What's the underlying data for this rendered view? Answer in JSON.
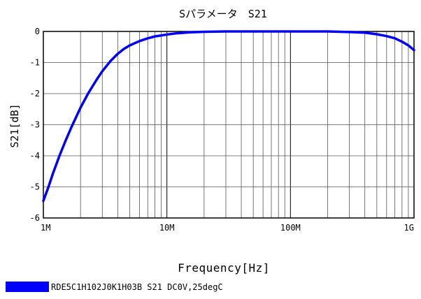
{
  "chart_data": {
    "type": "line",
    "title": "Sパラメータ　S21",
    "xlabel": "Frequency[Hz]",
    "ylabel": "S21[dB]",
    "x_scale": "log",
    "xlim": [
      1000000,
      1000000000
    ],
    "ylim": [
      -6,
      0
    ],
    "x_tick_labels": [
      "1M",
      "10M",
      "100M",
      "1G"
    ],
    "y_tick_labels": [
      "0",
      "-1",
      "-2",
      "-3",
      "-4",
      "-5",
      "-6"
    ],
    "y_tick_values": [
      0,
      -1,
      -2,
      -3,
      -4,
      -5,
      -6
    ],
    "grid": true,
    "legend_position": "bottom-left",
    "series": [
      {
        "name": "RDE5C1H102J0K1H03B S21 DC0V,25degC",
        "color": "#0000ff",
        "x": [
          1000000,
          1100000,
          1200000,
          1350000,
          1500000,
          1700000,
          2000000,
          2300000,
          2700000,
          3000000,
          3500000,
          4000000,
          4500000,
          5000000,
          6000000,
          7000000,
          8000000,
          10000000,
          12000000,
          15000000,
          20000000,
          30000000,
          50000000,
          100000000,
          200000000,
          300000000,
          400000000,
          500000000,
          600000000,
          700000000,
          800000000,
          900000000,
          1000000000
        ],
        "y": [
          -5.45,
          -5.0,
          -4.55,
          -4.0,
          -3.55,
          -3.05,
          -2.45,
          -2.0,
          -1.55,
          -1.28,
          -0.95,
          -0.72,
          -0.56,
          -0.45,
          -0.31,
          -0.22,
          -0.16,
          -0.1,
          -0.06,
          -0.03,
          -0.01,
          0.0,
          0.0,
          0.0,
          0.0,
          -0.02,
          -0.04,
          -0.09,
          -0.15,
          -0.22,
          -0.33,
          -0.45,
          -0.6
        ]
      }
    ]
  }
}
